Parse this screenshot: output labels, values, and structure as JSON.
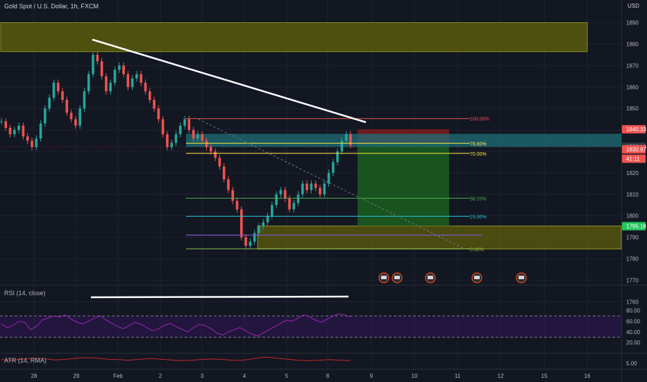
{
  "chart_title": "Gold Spot / U.S. Dollar, 1h, FXCM",
  "currency": "USD",
  "colors": {
    "bg": "#131722",
    "grid": "#1f2330",
    "up": "#26a69a",
    "down": "#ef5350",
    "rsi": "#9c27b0",
    "atr": "#c62828",
    "zone": "#808000",
    "target": "#1b5e20",
    "stop": "#7f1d1d",
    "entry_band": "#1f6f78"
  },
  "chart_data": [
    {
      "type": "line",
      "title": "Gold Spot / U.S. Dollar, 1h, FXCM",
      "x_tick_labels": [
        "28",
        "29",
        "Feb",
        "2",
        "3",
        "4",
        "5",
        "8",
        "9",
        "10",
        "11",
        "12",
        "15",
        "16"
      ],
      "y_ticks": [
        1760,
        1770,
        1780,
        1790,
        1800,
        1810,
        1820,
        1830,
        1840,
        1850,
        1860,
        1870,
        1880,
        1890
      ],
      "ylim": [
        1759,
        1892
      ],
      "series": [
        {
          "values": [
            1844,
            1841,
            1838,
            1840,
            1842,
            1837,
            1835,
            1832,
            1836,
            1843,
            1850,
            1855,
            1862,
            1858,
            1854,
            1848,
            1845,
            1842,
            1850,
            1858,
            1866,
            1875,
            1872,
            1865,
            1858,
            1862,
            1868,
            1870,
            1866,
            1860,
            1864,
            1866,
            1862,
            1858,
            1854,
            1850,
            1845,
            1838,
            1832,
            1834,
            1838,
            1842,
            1845,
            1840,
            1836,
            1838,
            1835,
            1832,
            1830,
            1827,
            1823,
            1817,
            1812,
            1807,
            1803,
            1790,
            1786,
            1788,
            1792,
            1795,
            1797,
            1800,
            1805,
            1810,
            1812,
            1808,
            1803,
            1806,
            1810,
            1815,
            1812,
            1815,
            1813,
            1810,
            1815,
            1820,
            1825,
            1830,
            1835,
            1838,
            1833
          ]
        }
      ],
      "levels": [
        {
          "label": "100.00%",
          "value": 1845.3
        },
        {
          "label": "78.60%",
          "value": 1833.8
        },
        {
          "label": "70.00%",
          "value": 1829.1
        },
        {
          "label": "38.20%",
          "value": 1808.2
        },
        {
          "label": "25.00%",
          "value": 1799.8
        },
        {
          "label": "0.00%",
          "value": 1784.6
        }
      ],
      "price_tags": [
        {
          "text": "1840.33",
          "value": 1840.33
        },
        {
          "text": "1832.10",
          "value": 1832.1
        },
        {
          "text": "1830.97",
          "value": 1830.97
        },
        {
          "text": "41:11",
          "value": 1826.6
        },
        {
          "text": "1795.18",
          "value": 1795.18
        }
      ]
    },
    {
      "type": "line",
      "title": "RSI (14, close)",
      "y_ticks": [
        20,
        40,
        60,
        80
      ],
      "ylim": [
        5,
        95
      ],
      "band": [
        30,
        70
      ],
      "series": [
        {
          "name": "RSI (14, close)",
          "values": [
            55,
            48,
            52,
            60,
            58,
            44,
            50,
            62,
            66,
            70,
            68,
            72,
            64,
            58,
            55,
            60,
            66,
            70,
            62,
            56,
            50,
            46,
            52,
            58,
            54,
            48,
            42,
            46,
            52,
            56,
            50,
            45,
            40,
            48,
            54,
            52,
            46,
            38,
            34,
            40,
            44,
            48,
            42,
            36,
            32,
            38,
            44,
            50,
            56,
            62,
            60,
            66,
            72,
            68,
            62,
            58,
            64,
            70,
            74,
            72,
            68
          ]
        }
      ]
    },
    {
      "type": "line",
      "title": "ATR (14, RMA)",
      "y_ticks": [
        5
      ],
      "series": [
        {
          "name": "ATR (14, RMA)",
          "values": [
            6.4,
            6.2,
            6.6,
            7.0,
            6.8,
            6.3,
            6.5,
            6.9,
            7.2,
            7.0,
            6.6,
            6.4,
            6.2,
            6.5,
            6.8,
            6.6,
            6.3,
            6.0,
            6.2,
            6.5,
            6.7,
            6.4,
            6.1,
            6.3,
            6.9,
            7.4,
            7.0,
            6.6,
            6.2,
            6.0,
            6.2,
            6.4,
            6.2,
            6.0
          ]
        }
      ]
    }
  ]
}
